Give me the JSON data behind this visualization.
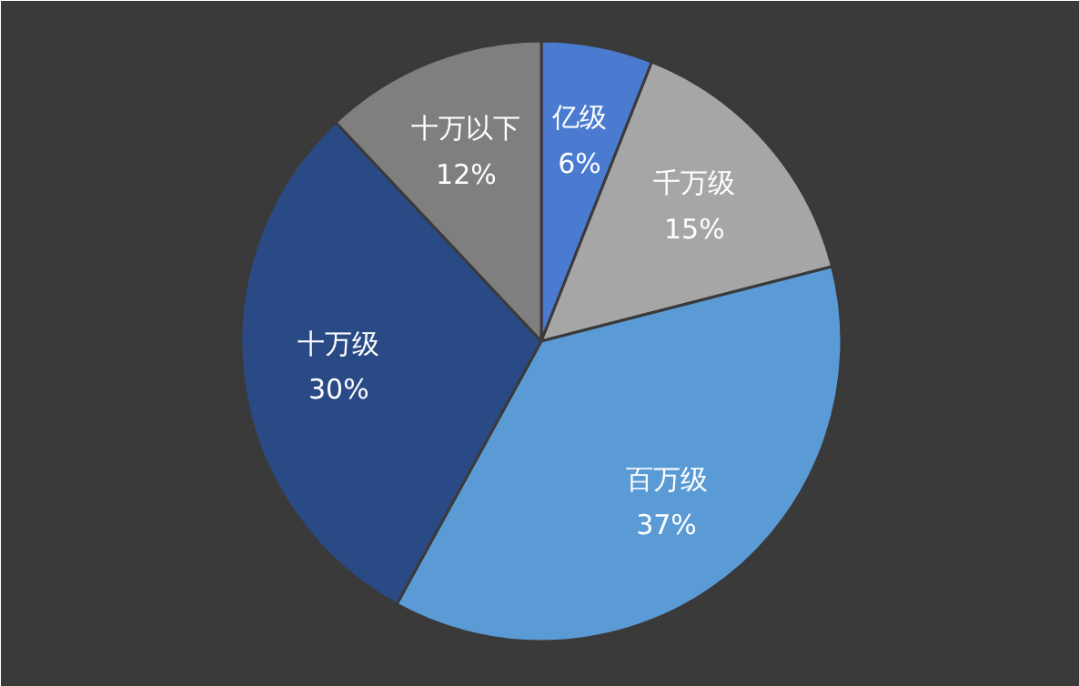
{
  "chart_data": {
    "type": "pie",
    "categories": [
      "亿级",
      "千万级",
      "百万级",
      "十万级",
      "十万以下"
    ],
    "values": [
      6,
      15,
      37,
      30,
      12
    ],
    "colors": [
      "#4a7bd0",
      "#a6a6a6",
      "#5b9bd5",
      "#2a4a86",
      "#7f7f7f"
    ],
    "value_labels": [
      "6%",
      "15%",
      "37%",
      "30%",
      "12%"
    ]
  }
}
